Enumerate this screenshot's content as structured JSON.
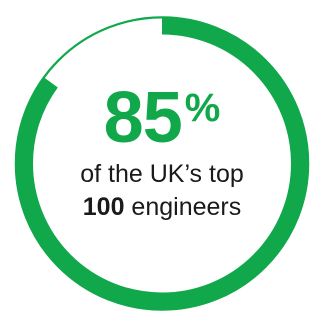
{
  "chart_data": {
    "type": "pie",
    "percent": 85,
    "unit": "%",
    "caption_line1": "of the UK’s top",
    "caption_line2_bold": "100",
    "caption_line2_rest": " engineers",
    "colors": {
      "filled": "#10a84a",
      "empty": "#ffffff",
      "outline": "#10a84a",
      "text": "#1a1a1a"
    }
  }
}
